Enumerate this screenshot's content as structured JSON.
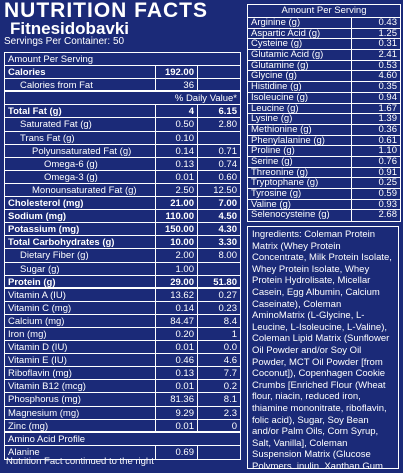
{
  "left": {
    "title": "NUTRITION FACTS",
    "watermark": "Fitnesidobavki",
    "servings": "Servings Per Container: 50",
    "rows": [
      {
        "label": "Amount Per Serving"
      },
      {
        "label": "Calories",
        "amount": "192.00"
      },
      {
        "label": "Calories from Fat",
        "amount": "36"
      },
      {
        "dv": "% Daily Value*"
      },
      {
        "label": "Total Fat (g)",
        "amount": "4",
        "dv": "6.15"
      },
      {
        "label": "Saturated Fat (g)",
        "amount": "0.50",
        "dv": "2.80"
      },
      {
        "label": "Trans Fat (g)",
        "amount": "0.10"
      },
      {
        "label": "Polyunsaturated Fat (g)",
        "amount": "0.14",
        "dv": "0.71"
      },
      {
        "label": "Omega-6 (g)",
        "amount": "0.13",
        "dv": "0.74"
      },
      {
        "label": "Omega-3 (g)",
        "amount": "0.01",
        "dv": "0.60"
      },
      {
        "label": "Monounsaturated Fat (g)",
        "amount": "2.50",
        "dv": "12.50"
      },
      {
        "label": "Cholesterol (mg)",
        "amount": "21.00",
        "dv": "7.00"
      },
      {
        "label": "Sodium (mg)",
        "amount": "110.00",
        "dv": "4.50"
      },
      {
        "label": "Potassium (mg)",
        "amount": "150.00",
        "dv": "4.30"
      },
      {
        "label": "Total Carbohydrates (g)",
        "amount": "10.00",
        "dv": "3.30"
      },
      {
        "label": "Dietary Fiber (g)",
        "amount": "2.00",
        "dv": "8.00"
      },
      {
        "label": "Sugar (g)",
        "amount": "1.00"
      },
      {
        "label": "Protein (g)",
        "amount": "29.00",
        "dv": "51.80"
      },
      {
        "label": "Vitamin A (IU)",
        "amount": "13.62",
        "dv": "0.27"
      },
      {
        "label": "Vitamin C (mg)",
        "amount": "0.14",
        "dv": "0.23"
      },
      {
        "label": "Calcium (mg)",
        "amount": "84.47",
        "dv": "8.4"
      },
      {
        "label": "Iron (mg)",
        "amount": "0.20",
        "dv": "1"
      },
      {
        "label": "Vitamin D (IU)",
        "amount": "0.01",
        "dv": "0.0"
      },
      {
        "label": "Vitamin E (IU)",
        "amount": "0.46",
        "dv": "4.6"
      },
      {
        "label": "Riboflavin (mg)",
        "amount": "0.13",
        "dv": "7.7"
      },
      {
        "label": "Vitamin B12 (mcg)",
        "amount": "0.01",
        "dv": "0.2"
      },
      {
        "label": "Phosphorus (mg)",
        "amount": "81.36",
        "dv": "8.1"
      },
      {
        "label": "Magnesium (mg)",
        "amount": "9.29",
        "dv": "2.3"
      },
      {
        "label": "Zinc (mg)",
        "amount": "0.01",
        "dv": "0"
      },
      {
        "label": "Amino Acid Profile"
      },
      {
        "label": "Alanine",
        "amount": "0.69"
      }
    ],
    "footer": "Nutrition Fact continued to the right"
  },
  "right": {
    "header": "Amount Per Serving",
    "rows": [
      [
        "Arginine (g)",
        "0.43"
      ],
      [
        "Aspartic Acid (g)",
        "1.25"
      ],
      [
        "Cysteine (g)",
        "0.31"
      ],
      [
        "Glutamic Acid (g)",
        "2.41"
      ],
      [
        "Glutamine (g)",
        "0.53"
      ],
      [
        "Glycine (g)",
        "4.60"
      ],
      [
        "Histidine (g)",
        "0.35"
      ],
      [
        "Isoleucine (g)",
        "0.94"
      ],
      [
        "Leucine (g)",
        "1.67"
      ],
      [
        "Lysine (g)",
        "1.39"
      ],
      [
        "Methionine (g)",
        "0.36"
      ],
      [
        "Phenylalanine (g)",
        "0.61"
      ],
      [
        "Proline (g)",
        "1.10"
      ],
      [
        "Serine (g)",
        "0.76"
      ],
      [
        "Threonine (g)",
        "0.91"
      ],
      [
        "Tryptophane (g)",
        "0.25"
      ],
      [
        "Tyrosine (g)",
        "0.59"
      ],
      [
        "Valine (g)",
        "0.93"
      ],
      [
        "Selenocysteine (g)",
        "2.68"
      ]
    ],
    "ingredients": "Ingredients: Coleman Protein Matrix (Whey Protein Concentrate, Milk Protein Isolate, Whey Protein Isolate, Whey Protein Hydrolisate, Micellar Casein, Egg Albumin, Calcium Caseinate), Coleman AminoMatrix (L-Glycine, L-Leucine, L-Isoleucine, L-Valine), Coleman Lipid Matrix (Sunflower Oil Powder and/or Soy Oil Powder, MCT Oil Powder [from Coconut]), Copenhagen Cookie Crumbs [Enriched Flour (Wheat flour, niacin, reduced iron, thiamine mononitrate, riboflavin, folic acid), Sugar, Soy Bean and/or Palm Oils, Corn Syrup, Salt, Vanilla], Coleman Suspension Matrix (Glucose Polymers, inulin, Xanthan Gum, Cellulose Gum, Carrageenan), Creatine Monohydrate, Natural and Artificial Flavors, Sea Salt, Acesulfame Potassium, Sucralose"
  }
}
